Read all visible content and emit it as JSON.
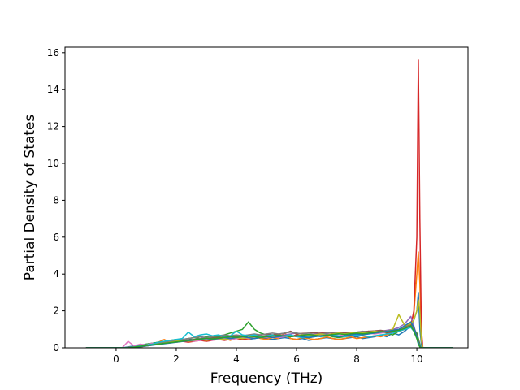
{
  "chart_data": {
    "type": "line",
    "title": "",
    "xlabel": "Frequency (THz)",
    "ylabel": "Partial Density of States",
    "xlim": [
      -1.7,
      11.7
    ],
    "ylim": [
      0,
      16.3
    ],
    "xticks": [
      0,
      2,
      4,
      6,
      8,
      10
    ],
    "xtick_labels": [
      "0",
      "2",
      "4",
      "6",
      "8",
      "10"
    ],
    "yticks": [
      0,
      2,
      4,
      6,
      8,
      10,
      12,
      14,
      16
    ],
    "ytick_labels": [
      "0",
      "2",
      "4",
      "6",
      "8",
      "10",
      "12",
      "14",
      "16"
    ],
    "grid": false,
    "legend": "none",
    "x": [
      -1.0,
      0.2,
      0.4,
      0.6,
      0.8,
      1.0,
      1.2,
      1.4,
      1.6,
      1.8,
      2.0,
      2.2,
      2.4,
      2.6,
      2.8,
      3.0,
      3.2,
      3.4,
      3.6,
      3.8,
      4.0,
      4.2,
      4.4,
      4.6,
      4.8,
      5.0,
      5.2,
      5.4,
      5.6,
      5.8,
      6.0,
      6.2,
      6.4,
      6.6,
      6.8,
      7.0,
      7.2,
      7.4,
      7.6,
      7.8,
      8.0,
      8.2,
      8.4,
      8.6,
      8.8,
      9.0,
      9.2,
      9.4,
      9.6,
      9.8,
      9.9,
      10.0,
      10.05,
      10.1,
      10.15,
      10.2,
      10.3,
      10.4,
      11.2
    ],
    "series": [
      {
        "color": "#1f77b4",
        "values": [
          0,
          0,
          0.05,
          0.1,
          0.15,
          0.2,
          0.25,
          0.3,
          0.3,
          0.35,
          0.4,
          0.45,
          0.5,
          0.4,
          0.45,
          0.5,
          0.45,
          0.5,
          0.4,
          0.5,
          0.55,
          0.5,
          0.45,
          0.5,
          0.55,
          0.5,
          0.45,
          0.5,
          0.55,
          0.5,
          0.45,
          0.5,
          0.4,
          0.45,
          0.5,
          0.55,
          0.5,
          0.45,
          0.5,
          0.55,
          0.6,
          0.5,
          0.55,
          0.6,
          0.7,
          0.6,
          0.8,
          0.7,
          0.9,
          1.2,
          1.5,
          2.0,
          3.0,
          1.0,
          0.2,
          0,
          0,
          0,
          0
        ]
      },
      {
        "color": "#ff7f0e",
        "values": [
          0,
          0,
          0.02,
          0.05,
          0.1,
          0.15,
          0.2,
          0.3,
          0.45,
          0.3,
          0.35,
          0.4,
          0.35,
          0.4,
          0.45,
          0.4,
          0.5,
          0.45,
          0.5,
          0.4,
          0.55,
          0.5,
          0.45,
          0.6,
          0.5,
          0.45,
          0.55,
          0.5,
          0.8,
          0.5,
          0.45,
          0.55,
          0.5,
          0.45,
          0.5,
          0.6,
          0.5,
          0.45,
          0.5,
          0.6,
          0.5,
          0.55,
          0.6,
          0.65,
          0.6,
          0.7,
          0.8,
          0.9,
          1.0,
          1.3,
          1.8,
          4.0,
          5.2,
          3.5,
          0.5,
          0,
          0,
          0,
          0
        ]
      },
      {
        "color": "#2ca02c",
        "values": [
          0,
          0,
          0,
          0.05,
          0.1,
          0.2,
          0.25,
          0.3,
          0.35,
          0.4,
          0.45,
          0.4,
          0.5,
          0.55,
          0.5,
          0.6,
          0.55,
          0.6,
          0.7,
          0.8,
          0.9,
          1.0,
          1.4,
          1.0,
          0.8,
          0.7,
          0.6,
          0.7,
          0.65,
          0.6,
          0.7,
          0.6,
          0.55,
          0.6,
          0.65,
          0.7,
          0.6,
          0.55,
          0.6,
          0.65,
          0.7,
          0.75,
          0.8,
          0.85,
          0.9,
          0.8,
          0.7,
          0.9,
          1.1,
          1.4,
          1.0,
          0.8,
          0.5,
          0.2,
          0,
          0,
          0,
          0,
          0
        ]
      },
      {
        "color": "#d62728",
        "values": [
          0,
          0,
          0,
          0.02,
          0.05,
          0.1,
          0.15,
          0.2,
          0.25,
          0.3,
          0.3,
          0.35,
          0.3,
          0.35,
          0.4,
          0.35,
          0.4,
          0.45,
          0.4,
          0.45,
          0.5,
          0.45,
          0.5,
          0.55,
          0.6,
          0.55,
          0.6,
          0.7,
          0.65,
          0.6,
          0.7,
          0.65,
          0.7,
          0.75,
          0.8,
          0.85,
          0.8,
          0.75,
          0.8,
          0.85,
          0.8,
          0.85,
          0.9,
          0.85,
          0.9,
          0.8,
          0.85,
          0.9,
          1.0,
          1.2,
          2.0,
          6.0,
          15.6,
          7.0,
          1.0,
          0,
          0,
          0,
          0
        ]
      },
      {
        "color": "#9467bd",
        "values": [
          0,
          0,
          0,
          0.05,
          0.1,
          0.15,
          0.2,
          0.25,
          0.3,
          0.35,
          0.4,
          0.45,
          0.4,
          0.45,
          0.5,
          0.55,
          0.5,
          0.55,
          0.6,
          0.55,
          0.6,
          0.65,
          0.7,
          0.65,
          0.7,
          0.75,
          0.7,
          0.65,
          0.7,
          0.75,
          0.8,
          0.75,
          0.7,
          0.75,
          0.8,
          0.75,
          0.7,
          0.75,
          0.8,
          0.85,
          0.8,
          0.85,
          0.9,
          0.85,
          0.9,
          0.95,
          1.0,
          1.1,
          1.3,
          1.7,
          1.2,
          0.6,
          0.3,
          0.1,
          0,
          0,
          0,
          0,
          0
        ]
      },
      {
        "color": "#8c564b",
        "values": [
          0,
          0,
          0,
          0.03,
          0.08,
          0.12,
          0.18,
          0.22,
          0.28,
          0.32,
          0.35,
          0.38,
          0.42,
          0.45,
          0.48,
          0.5,
          0.52,
          0.55,
          0.58,
          0.6,
          0.62,
          0.6,
          0.65,
          0.68,
          0.7,
          0.72,
          0.7,
          0.75,
          0.78,
          0.9,
          0.75,
          0.78,
          0.8,
          0.82,
          0.78,
          0.8,
          0.82,
          0.85,
          0.8,
          0.82,
          0.85,
          0.88,
          0.9,
          0.92,
          0.95,
          0.9,
          0.95,
          1.0,
          1.1,
          1.3,
          1.1,
          0.7,
          0.4,
          0.1,
          0,
          0,
          0,
          0,
          0
        ]
      },
      {
        "color": "#e377c2",
        "values": [
          0,
          0,
          0.35,
          0.1,
          0.2,
          0.15,
          0.25,
          0.2,
          0.3,
          0.35,
          0.3,
          0.35,
          0.4,
          0.35,
          0.4,
          0.45,
          0.4,
          0.45,
          0.5,
          0.45,
          0.5,
          0.55,
          0.5,
          0.55,
          0.6,
          0.55,
          0.6,
          0.55,
          0.6,
          0.65,
          0.6,
          0.65,
          0.6,
          0.65,
          0.7,
          0.65,
          0.7,
          0.65,
          0.7,
          0.75,
          0.7,
          0.75,
          0.8,
          0.75,
          0.8,
          0.85,
          0.9,
          0.95,
          1.0,
          1.1,
          0.9,
          0.5,
          0.3,
          0.1,
          0,
          0,
          0,
          0,
          0
        ]
      },
      {
        "color": "#7f7f7f",
        "values": [
          0,
          0,
          0,
          0.05,
          0.1,
          0.15,
          0.2,
          0.25,
          0.3,
          0.35,
          0.4,
          0.45,
          0.5,
          0.55,
          0.6,
          0.55,
          0.6,
          0.65,
          0.7,
          0.65,
          0.7,
          0.65,
          0.7,
          0.75,
          0.7,
          0.75,
          0.8,
          0.75,
          0.8,
          0.85,
          0.8,
          0.75,
          0.8,
          0.7,
          0.75,
          0.8,
          0.85,
          0.8,
          0.75,
          0.8,
          0.85,
          0.9,
          0.85,
          0.8,
          0.85,
          0.9,
          0.95,
          1.0,
          1.1,
          1.2,
          1.0,
          0.6,
          0.3,
          0.1,
          0,
          0,
          0,
          0,
          0
        ]
      },
      {
        "color": "#bcbd22",
        "values": [
          0,
          0,
          0,
          0.02,
          0.05,
          0.1,
          0.15,
          0.2,
          0.25,
          0.3,
          0.35,
          0.4,
          0.35,
          0.4,
          0.45,
          0.4,
          0.45,
          0.5,
          0.45,
          0.5,
          0.55,
          0.5,
          0.55,
          0.6,
          0.55,
          0.6,
          0.65,
          0.6,
          0.65,
          0.6,
          0.65,
          0.7,
          0.65,
          0.7,
          0.75,
          0.7,
          0.75,
          0.8,
          0.75,
          0.8,
          0.85,
          0.8,
          0.85,
          0.9,
          0.85,
          0.9,
          1.0,
          1.8,
          1.2,
          1.3,
          1.5,
          2.0,
          2.6,
          2.0,
          0.4,
          0,
          0,
          0,
          0
        ]
      },
      {
        "color": "#17becf",
        "values": [
          0,
          0,
          0,
          0.05,
          0.1,
          0.15,
          0.2,
          0.3,
          0.35,
          0.4,
          0.45,
          0.5,
          0.85,
          0.6,
          0.7,
          0.75,
          0.65,
          0.7,
          0.6,
          0.65,
          0.9,
          0.7,
          0.65,
          0.7,
          0.6,
          0.65,
          0.7,
          0.6,
          0.65,
          0.7,
          0.6,
          0.55,
          0.6,
          0.65,
          0.6,
          0.65,
          0.7,
          0.65,
          0.6,
          0.65,
          0.7,
          0.65,
          0.6,
          0.65,
          0.7,
          0.75,
          0.8,
          0.9,
          1.0,
          1.1,
          0.9,
          0.5,
          0.2,
          0.05,
          0,
          0,
          0,
          0,
          0
        ]
      },
      {
        "color": "#1f77b4",
        "values": [
          0,
          0,
          0,
          0.03,
          0.06,
          0.1,
          0.14,
          0.18,
          0.22,
          0.26,
          0.3,
          0.34,
          0.38,
          0.42,
          0.46,
          0.5,
          0.45,
          0.5,
          0.55,
          0.5,
          0.55,
          0.6,
          0.55,
          0.5,
          0.55,
          0.6,
          0.55,
          0.6,
          0.65,
          0.6,
          0.65,
          0.6,
          0.55,
          0.6,
          0.65,
          0.7,
          0.65,
          0.6,
          0.65,
          0.7,
          0.75,
          0.7,
          0.75,
          0.8,
          0.85,
          0.9,
          0.95,
          1.0,
          1.2,
          1.4,
          1.1,
          0.6,
          0.3,
          0.1,
          0,
          0,
          0,
          0,
          0
        ]
      },
      {
        "color": "#2ca02c",
        "values": [
          0,
          0,
          0,
          0.04,
          0.08,
          0.12,
          0.16,
          0.2,
          0.24,
          0.28,
          0.32,
          0.36,
          0.4,
          0.44,
          0.48,
          0.52,
          0.48,
          0.52,
          0.56,
          0.6,
          0.56,
          0.6,
          0.64,
          0.6,
          0.56,
          0.6,
          0.64,
          0.68,
          0.64,
          0.6,
          0.64,
          0.68,
          0.72,
          0.68,
          0.64,
          0.68,
          0.72,
          0.76,
          0.72,
          0.76,
          0.8,
          0.76,
          0.8,
          0.84,
          0.88,
          0.84,
          0.9,
          0.95,
          1.05,
          1.2,
          0.9,
          0.5,
          0.2,
          0.05,
          0,
          0,
          0,
          0,
          0
        ]
      }
    ]
  }
}
